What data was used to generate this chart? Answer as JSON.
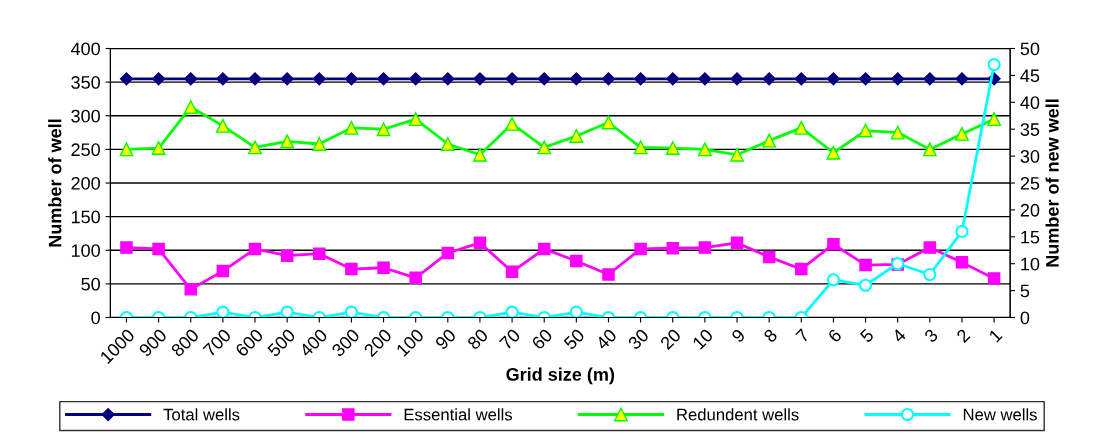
{
  "chart_data": {
    "type": "line",
    "xlabel": "Grid size (m)",
    "ylabel": "Number of well",
    "y2label": "Number of new well",
    "categories": [
      "1000",
      "900",
      "800",
      "700",
      "600",
      "500",
      "400",
      "300",
      "200",
      "100",
      "90",
      "80",
      "70",
      "60",
      "50",
      "40",
      "30",
      "20",
      "10",
      "9",
      "8",
      "7",
      "6",
      "5",
      "4",
      "3",
      "2",
      "1"
    ],
    "series": [
      {
        "name": "Total wells",
        "color": "#000080",
        "marker": "diamond",
        "values": [
          355,
          355,
          355,
          355,
          355,
          355,
          355,
          355,
          355,
          355,
          355,
          355,
          355,
          355,
          355,
          355,
          355,
          355,
          355,
          355,
          355,
          355,
          355,
          355,
          355,
          355,
          355,
          355
        ]
      },
      {
        "name": "Essential wells",
        "color": "#ff00ff",
        "marker": "square",
        "values": [
          104,
          102,
          42,
          69,
          102,
          92,
          95,
          72,
          74,
          59,
          96,
          111,
          68,
          102,
          84,
          64,
          102,
          103,
          104,
          111,
          90,
          72,
          109,
          78,
          79,
          104,
          82,
          58
        ]
      },
      {
        "name": "Redundent wells",
        "color": "#00ff00",
        "marker": "triangle",
        "values": [
          250,
          252,
          313,
          285,
          253,
          262,
          258,
          282,
          280,
          295,
          258,
          242,
          288,
          253,
          270,
          290,
          253,
          252,
          250,
          242,
          263,
          282,
          245,
          278,
          275,
          250,
          273,
          295
        ]
      },
      {
        "name": "New wells",
        "color": "#00ffff",
        "marker": "circle",
        "axis": "y2",
        "values": [
          0,
          0,
          0,
          1,
          0,
          1,
          0,
          1,
          0,
          0,
          0,
          0,
          1,
          0,
          1,
          0,
          0,
          0,
          0,
          0,
          0,
          0,
          7,
          6,
          10,
          8,
          16,
          47
        ]
      }
    ],
    "ylim": [
      0,
      400
    ],
    "yticks": [
      0,
      50,
      100,
      150,
      200,
      250,
      300,
      350,
      400
    ],
    "y2lim": [
      0,
      50
    ],
    "y2ticks": [
      0,
      5,
      10,
      15,
      20,
      25,
      30,
      35,
      40,
      45,
      50
    ],
    "grid": "y",
    "legend": "bottom"
  }
}
